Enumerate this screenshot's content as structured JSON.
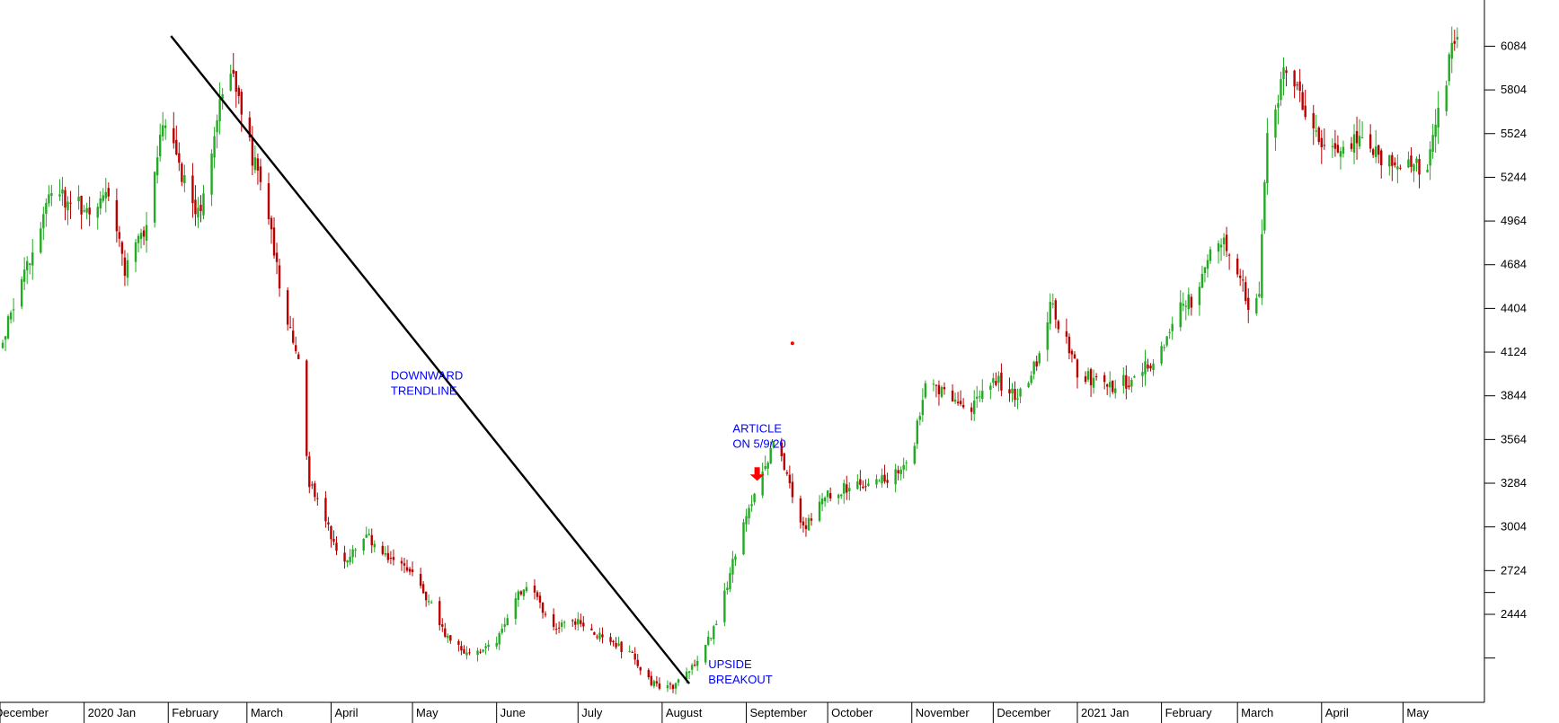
{
  "chart_data": {
    "type": "candlestick",
    "title": "",
    "xlabel": "",
    "ylabel": "",
    "x_range": [
      "2019-12-01",
      "2021-05-31"
    ],
    "y_range": [
      1880,
      6380
    ],
    "grid": false,
    "y_axis_side": "right",
    "y_ticks": [
      2444,
      2724,
      3004,
      3284,
      3564,
      3844,
      4124,
      4404,
      4684,
      4964,
      5244,
      5524,
      5804,
      6084
    ],
    "y_minor_ticks": [
      2164,
      2584
    ],
    "x_ticks": [
      {
        "date": "2019-12-01",
        "label": "December"
      },
      {
        "date": "2020-01-01",
        "label": "2020 Jan"
      },
      {
        "date": "2020-02-01",
        "label": "February"
      },
      {
        "date": "2020-03-01",
        "label": "March"
      },
      {
        "date": "2020-04-01",
        "label": "April"
      },
      {
        "date": "2020-05-01",
        "label": "May"
      },
      {
        "date": "2020-06-01",
        "label": "June"
      },
      {
        "date": "2020-07-01",
        "label": "July"
      },
      {
        "date": "2020-08-01",
        "label": "August"
      },
      {
        "date": "2020-09-01",
        "label": "September"
      },
      {
        "date": "2020-10-01",
        "label": "October"
      },
      {
        "date": "2020-11-01",
        "label": "November"
      },
      {
        "date": "2020-12-01",
        "label": "December"
      },
      {
        "date": "2021-01-01",
        "label": "2021 Jan"
      },
      {
        "date": "2021-02-01",
        "label": "February"
      },
      {
        "date": "2021-03-01",
        "label": "March"
      },
      {
        "date": "2021-04-01",
        "label": "April"
      },
      {
        "date": "2021-05-01",
        "label": "May"
      }
    ],
    "up_color": "#22aa22",
    "down_color": "#bb0000",
    "price_path": [
      [
        "2019-12-01",
        4150
      ],
      [
        "2019-12-12",
        4750
      ],
      [
        "2019-12-20",
        5150
      ],
      [
        "2020-01-01",
        5050
      ],
      [
        "2020-01-10",
        5100
      ],
      [
        "2020-01-16",
        4650
      ],
      [
        "2020-01-24",
        4950
      ],
      [
        "2020-01-30",
        5600
      ],
      [
        "2020-02-06",
        5250
      ],
      [
        "2020-02-12",
        5000
      ],
      [
        "2020-02-18",
        5550
      ],
      [
        "2020-02-24",
        5950
      ],
      [
        "2020-03-02",
        5450
      ],
      [
        "2020-03-09",
        4950
      ],
      [
        "2020-03-16",
        4300
      ],
      [
        "2020-03-20",
        4050
      ],
      [
        "2020-03-24",
        3300
      ],
      [
        "2020-03-31",
        3000
      ],
      [
        "2020-04-06",
        2750
      ],
      [
        "2020-04-14",
        2950
      ],
      [
        "2020-04-22",
        2800
      ],
      [
        "2020-04-30",
        2750
      ],
      [
        "2020-05-08",
        2500
      ],
      [
        "2020-05-15",
        2250
      ],
      [
        "2020-05-23",
        2200
      ],
      [
        "2020-06-01",
        2250
      ],
      [
        "2020-06-07",
        2550
      ],
      [
        "2020-06-14",
        2650
      ],
      [
        "2020-06-21",
        2350
      ],
      [
        "2020-07-01",
        2400
      ],
      [
        "2020-07-10",
        2300
      ],
      [
        "2020-07-20",
        2200
      ],
      [
        "2020-07-28",
        2000
      ],
      [
        "2020-08-05",
        1980
      ],
      [
        "2020-08-15",
        2150
      ],
      [
        "2020-08-22",
        2450
      ],
      [
        "2020-08-29",
        2900
      ],
      [
        "2020-09-05",
        3250
      ],
      [
        "2020-09-11",
        3550
      ],
      [
        "2020-09-16",
        3350
      ],
      [
        "2020-09-22",
        3000
      ],
      [
        "2020-09-30",
        3200
      ],
      [
        "2020-10-10",
        3280
      ],
      [
        "2020-10-20",
        3300
      ],
      [
        "2020-10-31",
        3400
      ],
      [
        "2020-11-06",
        3900
      ],
      [
        "2020-11-14",
        3850
      ],
      [
        "2020-11-22",
        3750
      ],
      [
        "2020-12-01",
        3950
      ],
      [
        "2020-12-10",
        3850
      ],
      [
        "2020-12-18",
        4100
      ],
      [
        "2020-12-22",
        4450
      ],
      [
        "2021-01-01",
        4000
      ],
      [
        "2021-01-12",
        3900
      ],
      [
        "2021-01-22",
        3950
      ],
      [
        "2021-01-31",
        4100
      ],
      [
        "2021-02-08",
        4400
      ],
      [
        "2021-02-15",
        4500
      ],
      [
        "2021-02-20",
        4900
      ],
      [
        "2021-02-28",
        4700
      ],
      [
        "2021-03-05",
        4450
      ],
      [
        "2021-03-09",
        4550
      ],
      [
        "2021-03-12",
        5550
      ],
      [
        "2021-03-20",
        6000
      ],
      [
        "2021-03-27",
        5600
      ],
      [
        "2021-04-05",
        5400
      ],
      [
        "2021-04-15",
        5500
      ],
      [
        "2021-04-25",
        5350
      ],
      [
        "2021-05-04",
        5300
      ],
      [
        "2021-05-10",
        5350
      ],
      [
        "2021-05-15",
        5750
      ],
      [
        "2021-05-20",
        6100
      ],
      [
        "2021-05-22",
        6050
      ]
    ],
    "trendline": {
      "from": [
        "2020-02-02",
        6150
      ],
      "to": [
        "2020-08-11",
        2000
      ]
    },
    "annotations": [
      {
        "lines": [
          "DOWNWARD",
          "TRENDLINE"
        ],
        "date": "2020-04-23",
        "value": 3950
      },
      {
        "lines": [
          "ARTICLE",
          "ON 5/9/20"
        ],
        "date": "2020-08-27",
        "value": 3610
      },
      {
        "lines": [
          "UPSIDE",
          "BREAKOUT"
        ],
        "date": "2020-08-18",
        "value": 2100
      }
    ],
    "marker": {
      "date": "2020-09-05",
      "value": 3300,
      "shape": "arrow-down",
      "color": "#ff0000"
    },
    "dot": {
      "date": "2020-09-18",
      "value": 4180,
      "color": "#ff0000"
    }
  }
}
